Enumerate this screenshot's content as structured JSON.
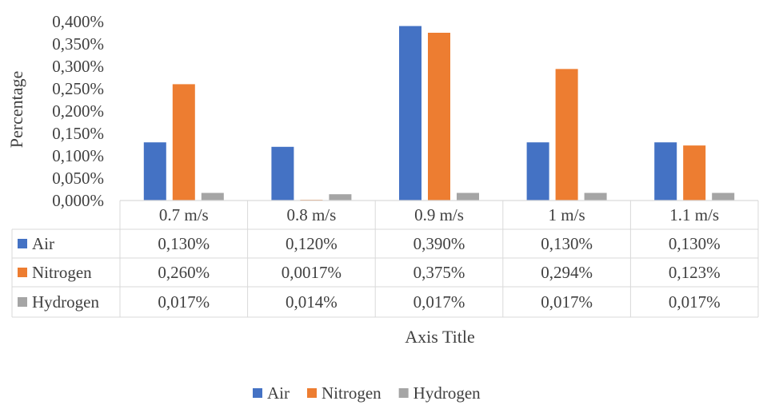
{
  "chart_data": {
    "type": "bar",
    "ylabel": "Percentage",
    "xlabel": "Axis Title",
    "categories": [
      "0.7 m/s",
      "0.8 m/s",
      "0.9 m/s",
      "1 m/s",
      "1.1 m/s"
    ],
    "ylim": [
      0,
      0.4
    ],
    "yticks": [
      "0,000%",
      "0,050%",
      "0,100%",
      "0,150%",
      "0,200%",
      "0,250%",
      "0,300%",
      "0,350%",
      "0,400%"
    ],
    "grid": false,
    "legend": "bottom",
    "series": [
      {
        "name": "Air",
        "color": "#4472C4",
        "values": [
          0.13,
          0.12,
          0.39,
          0.13,
          0.13
        ],
        "labels": [
          "0,130%",
          "0,120%",
          "0,390%",
          "0,130%",
          "0,130%"
        ]
      },
      {
        "name": "Nitrogen",
        "color": "#ED7D31",
        "values": [
          0.26,
          0.0017,
          0.375,
          0.294,
          0.123
        ],
        "labels": [
          "0,260%",
          "0,0017%",
          "0,375%",
          "0,294%",
          "0,123%"
        ]
      },
      {
        "name": "Hydrogen",
        "color": "#A5A5A5",
        "values": [
          0.017,
          0.014,
          0.017,
          0.017,
          0.017
        ],
        "labels": [
          "0,017%",
          "0,014%",
          "0,017%",
          "0,017%",
          "0,017%"
        ]
      }
    ]
  }
}
